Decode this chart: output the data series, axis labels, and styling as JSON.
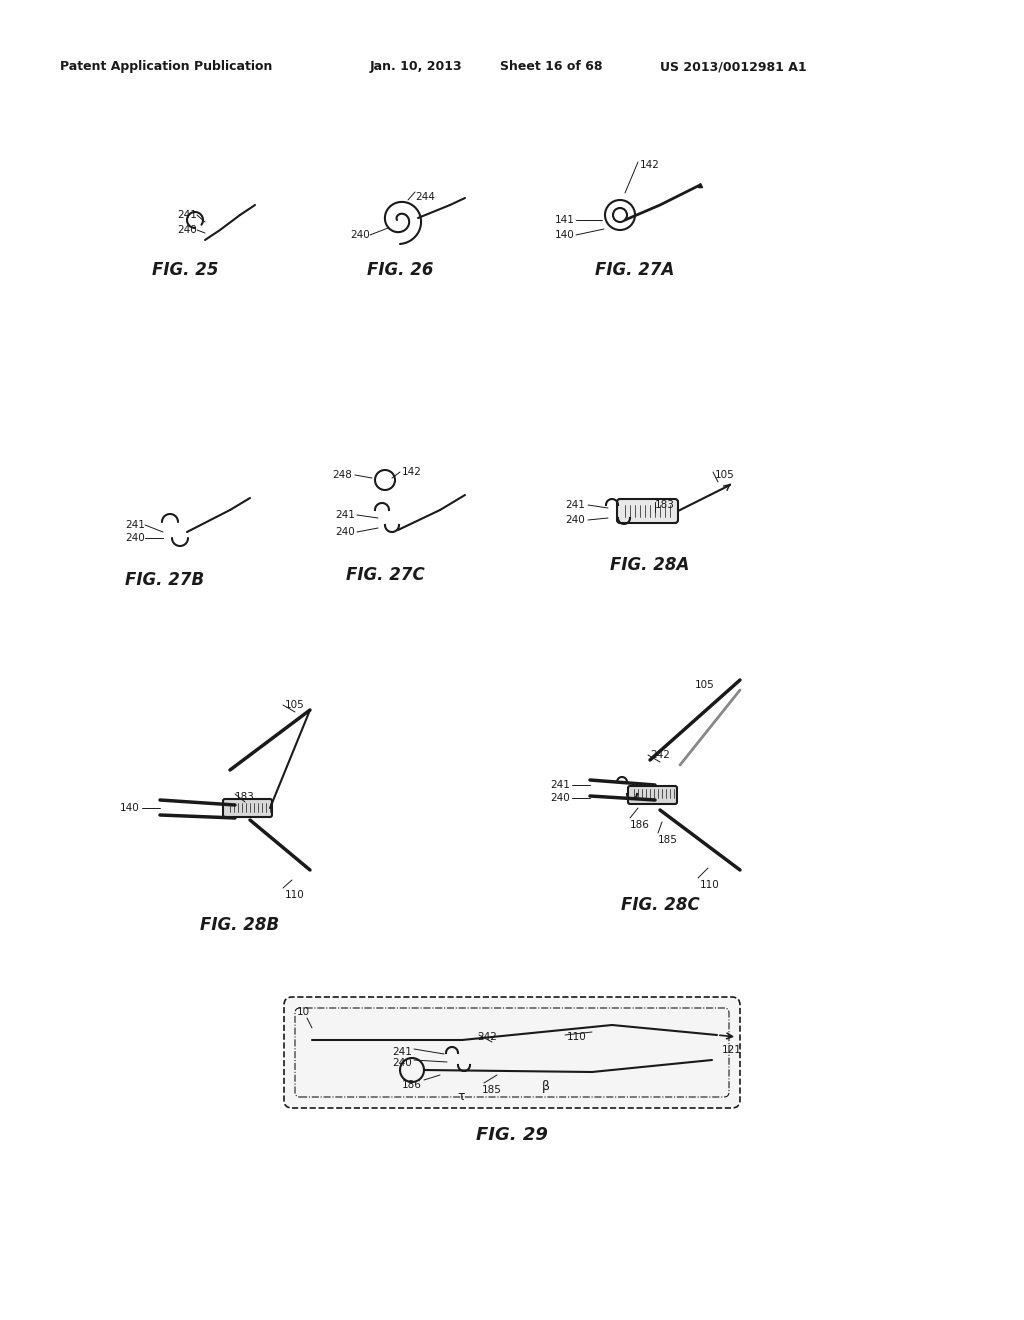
{
  "bg_color": "#ffffff",
  "header_text": "Patent Application Publication",
  "header_date": "Jan. 10, 2013",
  "header_sheet": "Sheet 16 of 68",
  "header_patent": "US 2013/0012981 A1",
  "fig_labels": [
    "FIG. 25",
    "FIG. 26",
    "FIG. 27A",
    "FIG. 27B",
    "FIG. 27C",
    "FIG. 28A",
    "FIG. 28B",
    "FIG. 28C",
    "FIG. 29"
  ],
  "text_color": "#1a1a1a",
  "line_color": "#1a1a1a",
  "lw": 1.5
}
